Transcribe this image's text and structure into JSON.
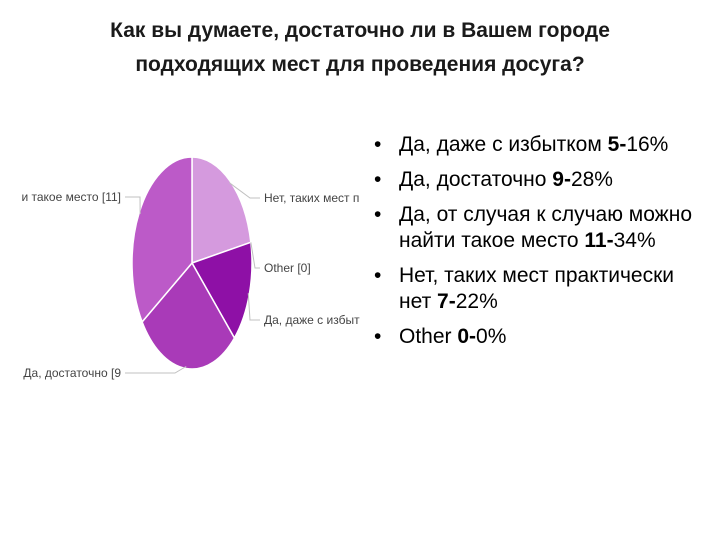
{
  "title": {
    "line1": "Как вы думаете, достаточно ли в Вашем городе",
    "line2": "подходящих мест для проведения досуга?"
  },
  "bullets": [
    {
      "text": "Да, даже с избытком ",
      "count": "5",
      "pct": "16%"
    },
    {
      "text": "Да, достаточно ",
      "count": "9",
      "pct": "28%"
    },
    {
      "text": "Да, от случая к случаю можно найти такое место ",
      "count": "11",
      "pct": "34%"
    },
    {
      "text": "Нет, таких мест практически нет ",
      "count": "7",
      "pct": "22%"
    },
    {
      "text": "Other ",
      "count": "0",
      "pct": "0%"
    }
  ],
  "chart_data": {
    "type": "pie",
    "labels": [
      "Нет, таких мест п",
      "Other [0]",
      "Да, даже с избыт",
      "Да, достаточно [9",
      "и такое место [11]"
    ],
    "values": [
      7,
      0,
      5,
      9,
      11
    ],
    "colors": [
      "#d59ade",
      "#8a0fa0",
      "#8e10a6",
      "#a93ab8",
      "#bc5ac8"
    ],
    "legend": "none"
  }
}
